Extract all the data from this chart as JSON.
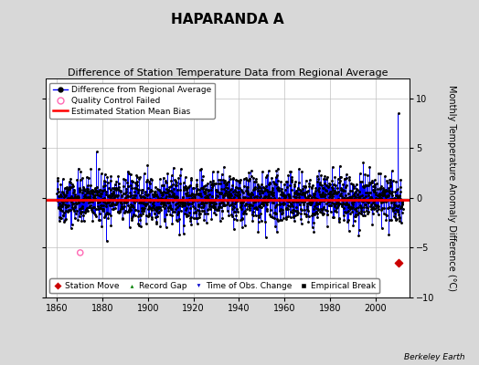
{
  "title": "HAPARANDA A",
  "subtitle": "Difference of Station Temperature Data from Regional Average",
  "ylabel": "Monthly Temperature Anomaly Difference (°C)",
  "ylim": [
    -10,
    12
  ],
  "yticks": [
    -10,
    -5,
    0,
    5,
    10
  ],
  "xlim": [
    1855,
    2015
  ],
  "xticks": [
    1860,
    1880,
    1900,
    1920,
    1940,
    1960,
    1980,
    2000
  ],
  "start_year": 1860,
  "end_year": 2012,
  "noise_std": 1.2,
  "bias_value": -0.15,
  "spike_year": 2010,
  "spike_value": 8.5,
  "qc_fail_year": 1870,
  "qc_fail_month": 3,
  "qc_fail_value": -5.5,
  "station_move_year": 2010,
  "station_move_value": -6.5,
  "line_color": "#0000FF",
  "dot_color": "#000000",
  "bias_color": "#FF0000",
  "qc_color": "#FF69B4",
  "station_move_color": "#CC0000",
  "gap_color": "#008000",
  "obs_color": "#0000CC",
  "bg_color": "#D8D8D8",
  "plot_bg": "#FFFFFF",
  "grid_color": "#C0C0C0",
  "watermark": "Berkeley Earth",
  "legend1_items": [
    "Difference from Regional Average",
    "Quality Control Failed",
    "Estimated Station Mean Bias"
  ],
  "legend2_items": [
    "Station Move",
    "Record Gap",
    "Time of Obs. Change",
    "Empirical Break"
  ],
  "title_fontsize": 11,
  "subtitle_fontsize": 8,
  "axis_label_fontsize": 7,
  "tick_fontsize": 7,
  "legend_fontsize": 6.5
}
